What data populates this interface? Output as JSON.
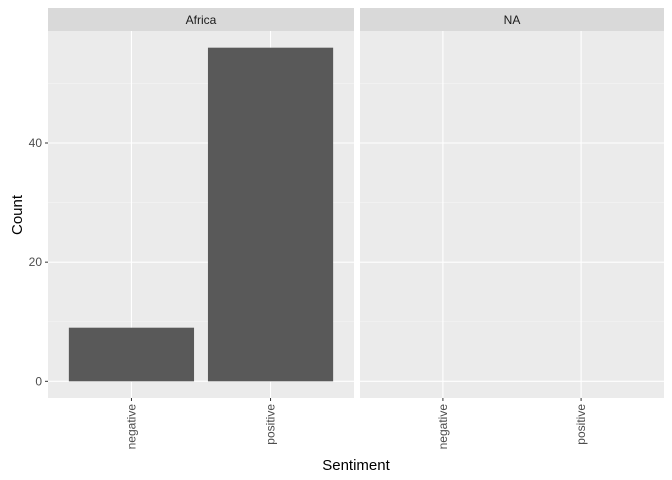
{
  "chart_data": {
    "type": "bar",
    "xlabel": "Sentiment",
    "ylabel": "Count",
    "ylim": [
      -2.8,
      58.8
    ],
    "y_ticks": [
      0,
      20,
      40
    ],
    "categories": [
      "negative",
      "positive"
    ],
    "grid": true,
    "panels": [
      {
        "name": "Africa",
        "values": [
          9,
          56
        ]
      },
      {
        "name": "NA",
        "values": [
          0,
          0
        ]
      }
    ],
    "colors": {
      "bar": "#595959",
      "panel_background": "#ebebeb",
      "strip_background": "#d9d9d9",
      "grid_major": "#ffffff",
      "grid_minor": "#f5f5f5"
    }
  }
}
